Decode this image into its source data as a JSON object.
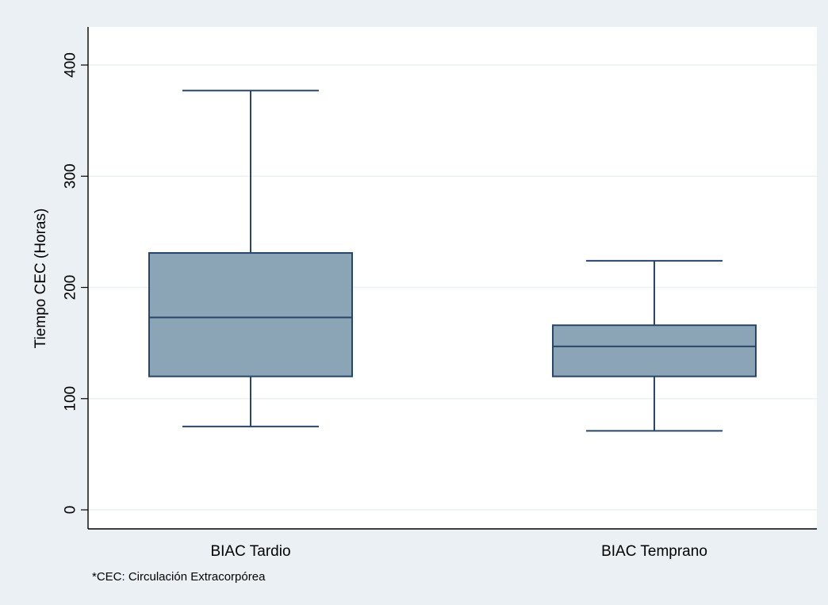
{
  "chart_data": {
    "type": "box",
    "ylabel": "Tiempo CEC (Horas)",
    "xlabel": "",
    "ylim": [
      0,
      400
    ],
    "yticks": [
      "0",
      "100",
      "200",
      "300",
      "400"
    ],
    "ytick_values": [
      0,
      100,
      200,
      300,
      400
    ],
    "grid": true,
    "categories": [
      "BIAC Tardio",
      "BIAC Temprano"
    ],
    "boxes": [
      {
        "category": "BIAC Tardio",
        "whisker_low": 75,
        "q1": 120,
        "median": 173,
        "q3": 231,
        "whisker_high": 377
      },
      {
        "category": "BIAC Temprano",
        "whisker_low": 71,
        "q1": 120,
        "median": 147,
        "q3": 166,
        "whisker_high": 224
      }
    ],
    "box_color": "#8ba4b6",
    "line_color": "#27466a",
    "footnote": "*CEC: Circulación Extracorpórea"
  }
}
